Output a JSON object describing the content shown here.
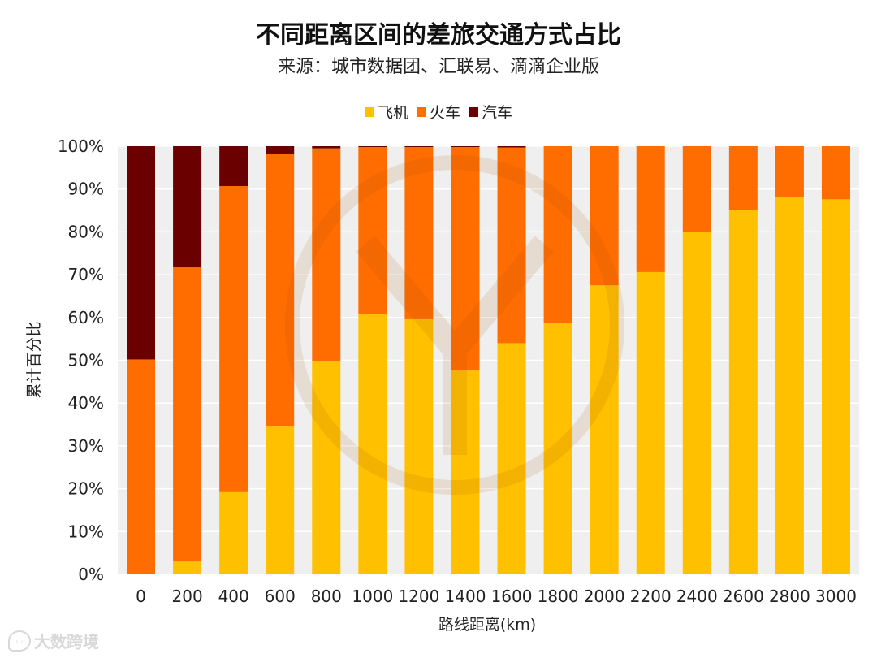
{
  "chart_data": {
    "type": "bar",
    "stacked": true,
    "title": "不同距离区间的差旅交通方式占比",
    "subtitle": "来源：城市数据团、汇联易、滴滴企业版",
    "xlabel": "路线距离(km)",
    "ylabel": "累计百分比",
    "ylim": [
      0,
      100
    ],
    "yticks": [
      "0%",
      "10%",
      "20%",
      "30%",
      "40%",
      "50%",
      "60%",
      "70%",
      "80%",
      "90%",
      "100%"
    ],
    "categories": [
      "0",
      "200",
      "400",
      "600",
      "800",
      "1000",
      "1200",
      "1400",
      "1600",
      "1800",
      "2000",
      "2200",
      "2400",
      "2600",
      "2800",
      "3000"
    ],
    "series": [
      {
        "name": "飞机",
        "color": "#FFC000",
        "values": [
          0,
          3,
          19.2,
          34.5,
          49.8,
          60.8,
          59.6,
          47.6,
          54,
          58.8,
          67.5,
          70.6,
          79.9,
          85.1,
          88.2,
          87.6
        ]
      },
      {
        "name": "火车",
        "color": "#FF6C00",
        "values": [
          50.2,
          68.7,
          71.5,
          63.6,
          49.7,
          39,
          40.2,
          52.2,
          45.7,
          41.2,
          32.5,
          29.4,
          20.1,
          14.9,
          11.8,
          12.4
        ]
      },
      {
        "name": "汽车",
        "color": "#6B0000",
        "values": [
          49.8,
          28.3,
          9.3,
          1.9,
          0.5,
          0.2,
          0.2,
          0.2,
          0.3,
          0,
          0,
          0,
          0,
          0,
          0,
          0
        ]
      }
    ],
    "grid": true,
    "legend": "top-center"
  },
  "watermark": "大数跨境"
}
